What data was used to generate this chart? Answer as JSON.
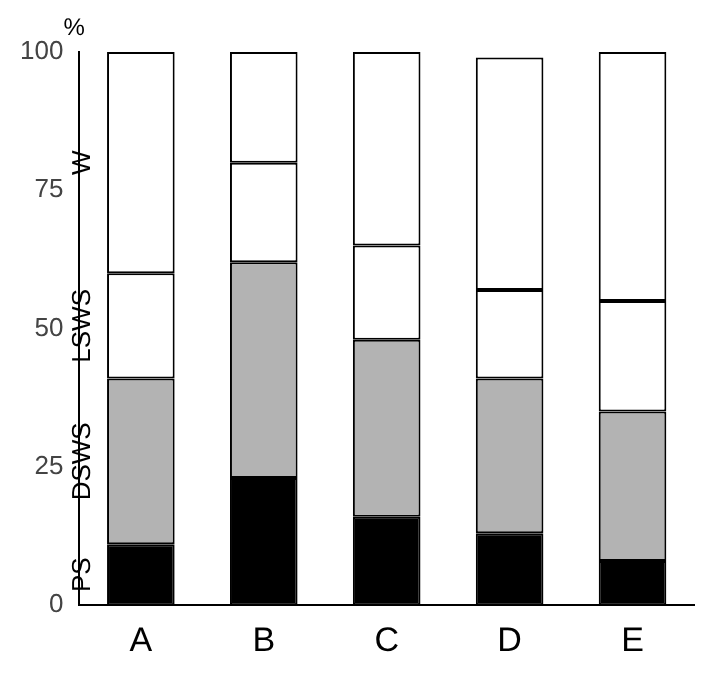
{
  "chart_data": {
    "type": "bar",
    "stacked": true,
    "ylabel": "%",
    "categories": [
      "A",
      "B",
      "C",
      "D",
      "E"
    ],
    "series": [
      {
        "name": "PS",
        "color": "#000000",
        "values": [
          11,
          23,
          16,
          13,
          8
        ]
      },
      {
        "name": "DSWS",
        "color": "#b3b3b3",
        "values": [
          30,
          39,
          32,
          28,
          27
        ]
      },
      {
        "name": "LSWS",
        "color": "#ffffff",
        "values": [
          19,
          18,
          17,
          16,
          20
        ]
      },
      {
        "name": "W",
        "color": "#ffffff",
        "values": [
          40,
          20,
          35,
          42,
          45
        ]
      }
    ],
    "ylim": [
      0,
      100
    ],
    "yticks": [
      0,
      25,
      50,
      75,
      100
    ],
    "grid": false
  }
}
